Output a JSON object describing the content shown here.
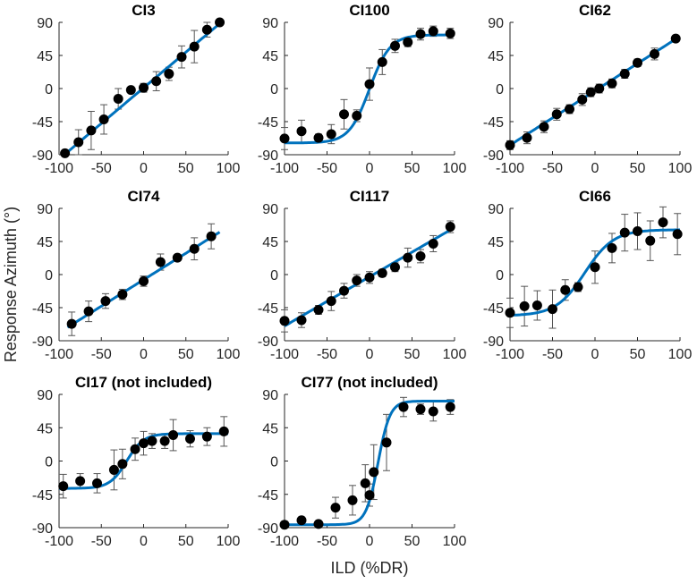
{
  "chart_data": {
    "type": "scatter",
    "xlabel": "ILD (%DR)",
    "ylabel": "Response Azimuth (°)",
    "xlim": [
      -100,
      100
    ],
    "ylim": [
      -90,
      90
    ],
    "xticks": [
      "-100",
      "-50",
      "0",
      "50",
      "100"
    ],
    "yticks": [
      "-90",
      "-45",
      "0",
      "45",
      "90"
    ],
    "colors": {
      "fit": "#0072BD",
      "points": "#000000",
      "errorbars": "#555555"
    },
    "panels": [
      {
        "title": "CI3",
        "x": [
          -93,
          -77,
          -62,
          -47,
          -30,
          -15,
          0,
          15,
          30,
          45,
          60,
          75,
          90
        ],
        "y": [
          -88,
          -73,
          -57,
          -42,
          -14,
          -2,
          1,
          10,
          20,
          43,
          57,
          80,
          90
        ],
        "err": [
          4,
          17,
          26,
          20,
          14,
          3,
          6,
          13,
          9,
          15,
          22,
          10,
          3
        ],
        "fit": {
          "model": "linear",
          "slope": 0.97,
          "intercept": 1,
          "range": [
            -95,
            90
          ]
        }
      },
      {
        "title": "CI100",
        "x": [
          -100,
          -80,
          -60,
          -45,
          -30,
          -15,
          0,
          15,
          30,
          45,
          60,
          75,
          95
        ],
        "y": [
          -68,
          -58,
          -67,
          -62,
          -35,
          -37,
          6,
          36,
          58,
          63,
          74,
          78,
          75
        ],
        "err": [
          15,
          15,
          5,
          13,
          20,
          8,
          22,
          17,
          9,
          6,
          8,
          7,
          7
        ],
        "fit": {
          "model": "logistic",
          "lower": -74,
          "upper": 73,
          "center": 0,
          "scale": 12,
          "range": [
            -100,
            100
          ]
        }
      },
      {
        "title": "CI62",
        "x": [
          -100,
          -80,
          -60,
          -45,
          -30,
          -15,
          -5,
          5,
          20,
          35,
          50,
          70,
          95
        ],
        "y": [
          -77,
          -67,
          -52,
          -35,
          -28,
          -15,
          -5,
          0,
          7,
          20,
          35,
          47,
          68
        ],
        "err": [
          6,
          8,
          8,
          8,
          6,
          8,
          6,
          6,
          6,
          6,
          5,
          8,
          4
        ],
        "fit": {
          "model": "linear",
          "slope": 0.74,
          "intercept": -3,
          "range": [
            -100,
            97
          ]
        }
      },
      {
        "title": "CI74",
        "x": [
          -85,
          -65,
          -45,
          -25,
          0,
          20,
          40,
          60,
          80
        ],
        "y": [
          -67,
          -50,
          -36,
          -27,
          -9,
          17,
          23,
          35,
          52
        ],
        "err": [
          16,
          14,
          10,
          7,
          7,
          11,
          4,
          15,
          17
        ],
        "fit": {
          "model": "linear",
          "slope": 0.72,
          "intercept": -7,
          "range": [
            -90,
            90
          ]
        }
      },
      {
        "title": "CI117",
        "x": [
          -100,
          -80,
          -60,
          -45,
          -30,
          -15,
          0,
          15,
          30,
          45,
          60,
          75,
          95
        ],
        "y": [
          -63,
          -62,
          -48,
          -36,
          -22,
          -8,
          -4,
          2,
          10,
          23,
          25,
          42,
          65
        ],
        "err": [
          15,
          10,
          6,
          13,
          10,
          8,
          8,
          5,
          6,
          13,
          9,
          11,
          8
        ],
        "fit": {
          "model": "linear",
          "slope": 0.67,
          "intercept": -3,
          "range": [
            -100,
            97
          ]
        }
      },
      {
        "title": "CI66",
        "x": [
          -100,
          -83,
          -68,
          -50,
          -35,
          -20,
          0,
          20,
          35,
          50,
          65,
          80,
          97
        ],
        "y": [
          -52,
          -43,
          -42,
          -47,
          -21,
          -17,
          10,
          36,
          57,
          59,
          46,
          71,
          55
        ],
        "err": [
          20,
          27,
          20,
          26,
          14,
          6,
          22,
          20,
          25,
          25,
          27,
          21,
          28
        ],
        "fit": {
          "model": "logistic",
          "lower": -56,
          "upper": 61,
          "center": -12,
          "scale": 17,
          "range": [
            -100,
            100
          ]
        }
      },
      {
        "title": "CI17 (not included)",
        "x": [
          -95,
          -75,
          -55,
          -35,
          -25,
          -10,
          0,
          10,
          25,
          35,
          55,
          75,
          95
        ],
        "y": [
          -34,
          -27,
          -30,
          -12,
          -4,
          16,
          24,
          27,
          27,
          35,
          30,
          33,
          40
        ],
        "err": [
          16,
          10,
          13,
          27,
          20,
          15,
          16,
          10,
          10,
          21,
          11,
          12,
          20
        ],
        "fit": {
          "model": "logistic",
          "lower": -37,
          "upper": 37,
          "center": -20,
          "scale": 10,
          "range": [
            -100,
            100
          ]
        }
      },
      {
        "title": "CI77 (not included)",
        "x": [
          -100,
          -80,
          -60,
          -40,
          -20,
          -5,
          0,
          5,
          20,
          40,
          60,
          75,
          95
        ],
        "y": [
          -86,
          -80,
          -85,
          -63,
          -53,
          -30,
          -46,
          -15,
          25,
          73,
          70,
          67,
          73
        ],
        "err": [
          3,
          3,
          3,
          14,
          20,
          25,
          15,
          37,
          38,
          13,
          7,
          13,
          10
        ],
        "fit": {
          "model": "logistic",
          "lower": -86,
          "upper": 81,
          "center": 10,
          "scale": 7,
          "range": [
            -100,
            100
          ]
        }
      }
    ]
  }
}
